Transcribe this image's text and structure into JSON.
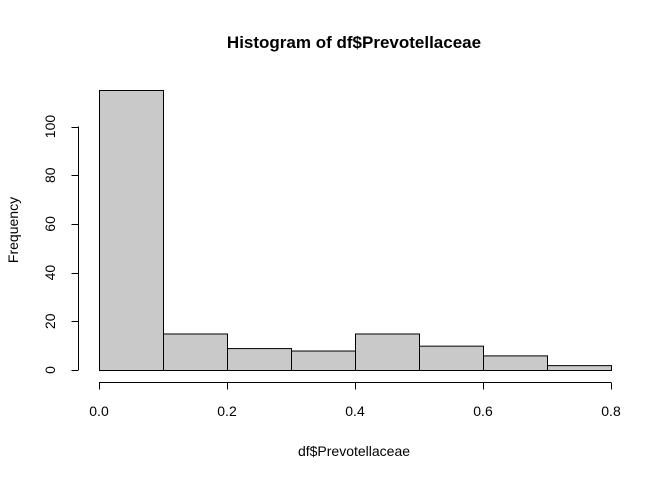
{
  "chart_data": {
    "type": "bar",
    "title": "Histogram of df$Prevotellaceae",
    "xlabel": "df$Prevotellaceae",
    "ylabel": "Frequency",
    "bins": [
      {
        "start": 0.0,
        "end": 0.1,
        "count": 115
      },
      {
        "start": 0.1,
        "end": 0.2,
        "count": 15
      },
      {
        "start": 0.2,
        "end": 0.3,
        "count": 9
      },
      {
        "start": 0.3,
        "end": 0.4,
        "count": 8
      },
      {
        "start": 0.4,
        "end": 0.5,
        "count": 15
      },
      {
        "start": 0.5,
        "end": 0.6,
        "count": 10
      },
      {
        "start": 0.6,
        "end": 0.7,
        "count": 6
      },
      {
        "start": 0.7,
        "end": 0.8,
        "count": 2
      }
    ],
    "xlim": [
      0.0,
      0.8
    ],
    "ylim": [
      0,
      115
    ],
    "x_ticks": [
      0.0,
      0.2,
      0.4,
      0.6,
      0.8
    ],
    "x_tick_labels": [
      "0.0",
      "0.2",
      "0.4",
      "0.6",
      "0.8"
    ],
    "y_ticks": [
      0,
      20,
      40,
      60,
      80,
      100
    ],
    "y_tick_labels": [
      "0",
      "20",
      "40",
      "60",
      "80",
      "100"
    ],
    "grid": false,
    "colors": {
      "bar_fill": "#c9c9c9",
      "bar_stroke": "#000000"
    }
  }
}
